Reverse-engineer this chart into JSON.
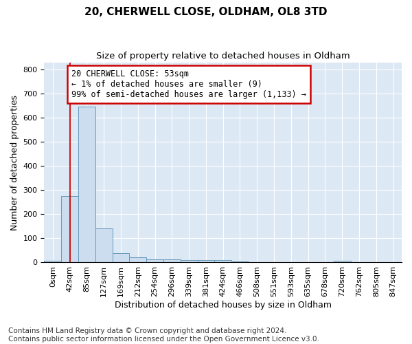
{
  "title_line1": "20, CHERWELL CLOSE, OLDHAM, OL8 3TD",
  "title_line2": "Size of property relative to detached houses in Oldham",
  "xlabel": "Distribution of detached houses by size in Oldham",
  "ylabel": "Number of detached properties",
  "bin_labels": [
    "0sqm",
    "42sqm",
    "85sqm",
    "127sqm",
    "169sqm",
    "212sqm",
    "254sqm",
    "296sqm",
    "339sqm",
    "381sqm",
    "424sqm",
    "466sqm",
    "508sqm",
    "551sqm",
    "593sqm",
    "635sqm",
    "678sqm",
    "720sqm",
    "762sqm",
    "805sqm",
    "847sqm"
  ],
  "bar_heights": [
    8,
    275,
    645,
    140,
    38,
    20,
    13,
    12,
    11,
    10,
    9,
    5,
    2,
    1,
    1,
    1,
    0,
    8,
    1,
    0,
    0
  ],
  "bar_color": "#ccddf0",
  "bar_edge_color": "#6699bb",
  "ylim": [
    0,
    830
  ],
  "yticks": [
    0,
    100,
    200,
    300,
    400,
    500,
    600,
    700,
    800
  ],
  "property_line_x": 1.5,
  "annotation_line1": "20 CHERWELL CLOSE: 53sqm",
  "annotation_line2": "← 1% of detached houses are smaller (9)",
  "annotation_line3": "99% of semi-detached houses are larger (1,133) →",
  "annotation_box_color": "#ffffff",
  "annotation_box_edge_color": "#cc0000",
  "red_line_color": "#cc0000",
  "footer_line1": "Contains HM Land Registry data © Crown copyright and database right 2024.",
  "footer_line2": "Contains public sector information licensed under the Open Government Licence v3.0.",
  "bg_color": "#ffffff",
  "plot_bg_color": "#dde8f5",
  "grid_color": "#ffffff",
  "title_fontsize": 11,
  "subtitle_fontsize": 9.5,
  "axis_label_fontsize": 9,
  "tick_fontsize": 8,
  "annotation_fontsize": 8.5,
  "footer_fontsize": 7.5
}
